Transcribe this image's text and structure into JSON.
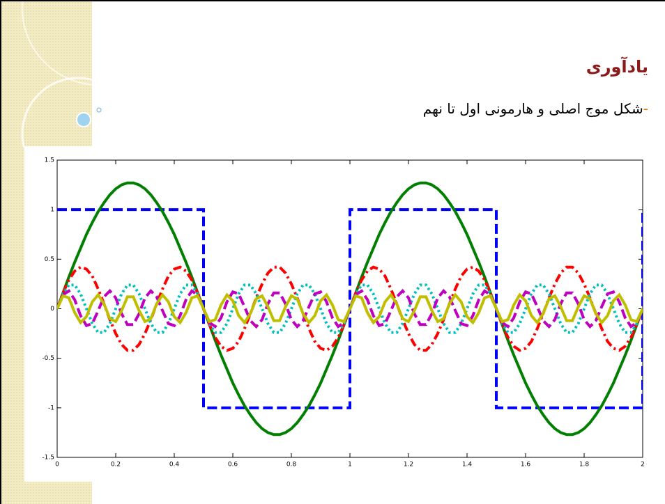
{
  "slide_title": "یادآوری",
  "bullet_marker": "-",
  "bullet_text": "شکل موج اصلی و هارمونی اول تا نهم",
  "chart_data": {
    "type": "line",
    "x": [
      0,
      0.02,
      0.04,
      0.06,
      0.08,
      0.1,
      0.12,
      0.14,
      0.16,
      0.18,
      0.2,
      0.22,
      0.24,
      0.26,
      0.28,
      0.3,
      0.32,
      0.34,
      0.36,
      0.38,
      0.4,
      0.42,
      0.44,
      0.46,
      0.48,
      0.5,
      0.52,
      0.54,
      0.56,
      0.58,
      0.6,
      0.62,
      0.64,
      0.66,
      0.68,
      0.7,
      0.72,
      0.74,
      0.76,
      0.78,
      0.8,
      0.82,
      0.84,
      0.86,
      0.88,
      0.9,
      0.92,
      0.94,
      0.96,
      0.98,
      1,
      1.02,
      1.04,
      1.06,
      1.08,
      1.1,
      1.12,
      1.14,
      1.16,
      1.18,
      1.2,
      1.22,
      1.24,
      1.26,
      1.28,
      1.3,
      1.32,
      1.34,
      1.36,
      1.38,
      1.4,
      1.42,
      1.44,
      1.46,
      1.48,
      1.5,
      1.52,
      1.54,
      1.56,
      1.58,
      1.6,
      1.62,
      1.64,
      1.66,
      1.68,
      1.7,
      1.72,
      1.74,
      1.76,
      1.78,
      1.8,
      1.82,
      1.84,
      1.86,
      1.88,
      1.9,
      1.92,
      1.94,
      1.96,
      1.98,
      2
    ],
    "series": [
      {
        "color": "#0000ff",
        "style": "dashed",
        "x": [
          0,
          0.5,
          0.5,
          1,
          1,
          1.5,
          1.5,
          2,
          2
        ],
        "values": [
          1,
          1,
          -1,
          -1,
          1,
          1,
          -1,
          -1,
          1
        ]
      },
      {
        "color": "#007f00",
        "style": "solid",
        "values": [
          0,
          0.16,
          0.32,
          0.47,
          0.61,
          0.75,
          0.87,
          0.98,
          1.07,
          1.15,
          1.21,
          1.25,
          1.27,
          1.27,
          1.25,
          1.21,
          1.15,
          1.07,
          0.98,
          0.87,
          0.75,
          0.61,
          0.47,
          0.32,
          0.16,
          0,
          -0.16,
          -0.32,
          -0.47,
          -0.61,
          -0.75,
          -0.87,
          -0.98,
          -1.07,
          -1.15,
          -1.21,
          -1.25,
          -1.27,
          -1.27,
          -1.25,
          -1.21,
          -1.15,
          -1.07,
          -0.98,
          -0.87,
          -0.75,
          -0.61,
          -0.47,
          -0.32,
          -0.16,
          0,
          0.16,
          0.32,
          0.47,
          0.61,
          0.75,
          0.87,
          0.98,
          1.07,
          1.15,
          1.21,
          1.25,
          1.27,
          1.27,
          1.25,
          1.21,
          1.15,
          1.07,
          0.98,
          0.87,
          0.75,
          0.61,
          0.47,
          0.32,
          0.16,
          0,
          -0.16,
          -0.32,
          -0.47,
          -0.61,
          -0.75,
          -0.87,
          -0.98,
          -1.07,
          -1.15,
          -1.21,
          -1.25,
          -1.27,
          -1.27,
          -1.25,
          -1.21,
          -1.15,
          -1.07,
          -0.98,
          -0.87,
          -0.75,
          -0.61,
          -0.47,
          -0.32,
          -0.16,
          0
        ]
      },
      {
        "color": "#ff0000",
        "style": "dash-dot",
        "values": [
          0,
          0.16,
          0.29,
          0.38,
          0.42,
          0.4,
          0.33,
          0.2,
          0.05,
          -0.11,
          -0.25,
          -0.36,
          -0.42,
          -0.42,
          -0.36,
          -0.25,
          -0.11,
          0.05,
          0.2,
          0.33,
          0.4,
          0.42,
          0.38,
          0.29,
          0.16,
          0,
          -0.16,
          -0.29,
          -0.38,
          -0.42,
          -0.4,
          -0.33,
          -0.2,
          -0.05,
          0.11,
          0.25,
          0.36,
          0.42,
          0.42,
          0.36,
          0.25,
          0.11,
          -0.05,
          -0.2,
          -0.33,
          -0.4,
          -0.42,
          -0.38,
          -0.29,
          -0.16,
          0,
          0.16,
          0.29,
          0.38,
          0.42,
          0.4,
          0.33,
          0.2,
          0.05,
          -0.11,
          -0.25,
          -0.36,
          -0.42,
          -0.42,
          -0.36,
          -0.25,
          -0.11,
          0.05,
          0.2,
          0.33,
          0.4,
          0.42,
          0.38,
          0.29,
          0.16,
          0,
          -0.16,
          -0.29,
          -0.38,
          -0.42,
          -0.4,
          -0.33,
          -0.2,
          -0.05,
          0.11,
          0.25,
          0.36,
          0.42,
          0.42,
          0.36,
          0.25,
          0.11,
          -0.05,
          -0.2,
          -0.33,
          -0.4,
          -0.42,
          -0.38,
          -0.29,
          -0.16,
          0
        ]
      },
      {
        "color": "#00bfbf",
        "style": "dotted",
        "values": [
          0,
          0.15,
          0.24,
          0.24,
          0.15,
          0,
          -0.15,
          -0.24,
          -0.24,
          -0.15,
          0,
          0.15,
          0.24,
          0.24,
          0.15,
          0,
          -0.15,
          -0.24,
          -0.24,
          -0.15,
          0,
          0.15,
          0.24,
          0.24,
          0.15,
          0,
          -0.15,
          -0.24,
          -0.24,
          -0.15,
          0,
          0.15,
          0.24,
          0.24,
          0.15,
          0,
          -0.15,
          -0.24,
          -0.24,
          -0.15,
          0,
          0.15,
          0.24,
          0.24,
          0.15,
          0,
          -0.15,
          -0.24,
          -0.24,
          -0.15,
          0,
          0.15,
          0.24,
          0.24,
          0.15,
          0,
          -0.15,
          -0.24,
          -0.24,
          -0.15,
          0,
          0.15,
          0.24,
          0.24,
          0.15,
          0,
          -0.15,
          -0.24,
          -0.24,
          -0.15,
          0,
          0.15,
          0.24,
          0.24,
          0.15,
          0,
          -0.15,
          -0.24,
          -0.24,
          -0.15,
          0,
          0.15,
          0.24,
          0.24,
          0.15,
          0,
          -0.15,
          -0.24,
          -0.24,
          -0.15,
          0,
          0.15,
          0.24,
          0.24,
          0.15,
          0,
          -0.15,
          -0.24,
          -0.24,
          -0.15,
          0
        ]
      },
      {
        "color": "#bf00bf",
        "style": "dashed",
        "values": [
          0,
          0.14,
          0.18,
          0.09,
          -0.07,
          -0.17,
          -0.15,
          -0.02,
          0.12,
          0.18,
          0.11,
          -0.05,
          -0.16,
          -0.16,
          -0.05,
          0.11,
          0.18,
          0.12,
          -0.02,
          -0.15,
          -0.17,
          -0.07,
          0.09,
          0.18,
          0.14,
          0,
          -0.14,
          -0.18,
          -0.09,
          0.07,
          0.17,
          0.15,
          0.02,
          -0.12,
          -0.18,
          -0.11,
          0.05,
          0.16,
          0.16,
          0.05,
          -0.11,
          -0.18,
          -0.12,
          0.02,
          0.15,
          0.17,
          0.07,
          -0.09,
          -0.18,
          -0.14,
          0,
          0.14,
          0.18,
          0.09,
          -0.07,
          -0.17,
          -0.15,
          -0.02,
          0.12,
          0.18,
          0.11,
          -0.05,
          -0.16,
          -0.16,
          -0.05,
          0.11,
          0.18,
          0.12,
          -0.02,
          -0.15,
          -0.17,
          -0.07,
          0.09,
          0.18,
          0.14,
          0,
          -0.14,
          -0.18,
          -0.09,
          0.07,
          0.17,
          0.15,
          0.02,
          -0.12,
          -0.18,
          -0.11,
          0.05,
          0.16,
          0.16,
          0.05,
          -0.11,
          -0.18,
          -0.12,
          0.02,
          0.15,
          0.17,
          0.07,
          -0.09,
          -0.18,
          -0.14,
          0
        ]
      },
      {
        "color": "#bfbf00",
        "style": "solid",
        "values": [
          0,
          0.13,
          0.11,
          -0.04,
          -0.14,
          -0.08,
          0.07,
          0.14,
          0.05,
          -0.1,
          -0.13,
          -0.02,
          0.12,
          0.12,
          -0.02,
          -0.13,
          -0.1,
          0.05,
          0.14,
          0.07,
          -0.08,
          -0.14,
          -0.04,
          0.11,
          0.13,
          0,
          -0.13,
          -0.11,
          0.04,
          0.14,
          0.08,
          -0.07,
          -0.14,
          -0.05,
          0.1,
          0.13,
          0.02,
          -0.12,
          -0.12,
          0.02,
          0.13,
          0.1,
          -0.05,
          -0.14,
          -0.07,
          0.08,
          0.14,
          0.04,
          -0.11,
          -0.13,
          0,
          0.13,
          0.11,
          -0.04,
          -0.14,
          -0.08,
          0.07,
          0.14,
          0.05,
          -0.1,
          -0.13,
          -0.02,
          0.12,
          0.12,
          -0.02,
          -0.13,
          -0.1,
          0.05,
          0.14,
          0.07,
          -0.08,
          -0.14,
          -0.04,
          0.11,
          0.13,
          0,
          -0.13,
          -0.11,
          0.04,
          0.14,
          0.08,
          -0.07,
          -0.14,
          -0.05,
          0.1,
          0.13,
          0.02,
          -0.12,
          -0.12,
          0.02,
          0.13,
          0.1,
          -0.05,
          -0.14,
          -0.07,
          0.08,
          0.14,
          0.04,
          -0.11,
          -0.13,
          0
        ]
      }
    ],
    "xlim": [
      0,
      2
    ],
    "xticks": [
      0,
      0.2,
      0.4,
      0.6,
      0.8,
      1,
      1.2,
      1.4,
      1.6,
      1.8,
      2
    ],
    "ylim": [
      -1.5,
      1.5
    ],
    "yticks": [
      -1.5,
      -1,
      -0.5,
      0,
      0.5,
      1,
      1.5
    ],
    "grid": false
  }
}
